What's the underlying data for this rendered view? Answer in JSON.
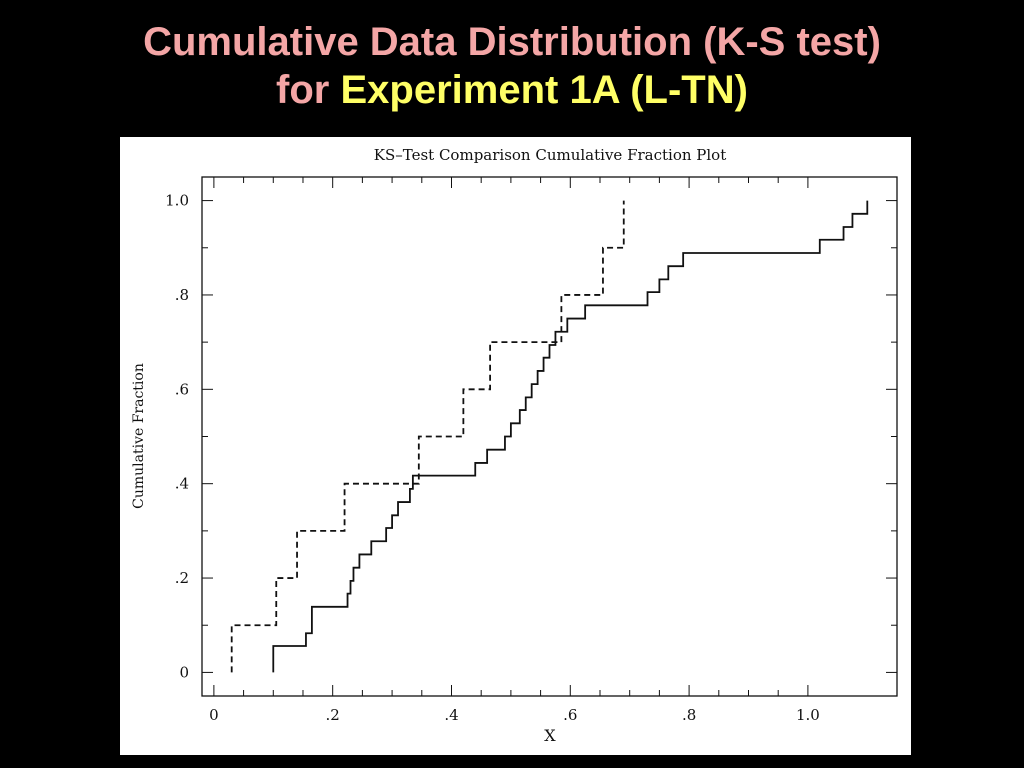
{
  "slide": {
    "title_line1": "Cumulative Data Distribution (K-S test)",
    "title_line2_prefix": "for",
    "title_line2_highlight": "Experiment 1A (L-TN)",
    "colors": {
      "title": "#f4a6a6",
      "highlight": "#ffff66",
      "background": "#000000"
    }
  },
  "chart_data": {
    "type": "line",
    "title": "KS–Test Comparison Cumulative Fraction Plot",
    "xlabel": "X",
    "ylabel": "Cumulative Fraction",
    "xlim": [
      -0.02,
      1.15
    ],
    "ylim": [
      -0.05,
      1.05
    ],
    "xticks": [
      0,
      0.2,
      0.4,
      0.6,
      0.8,
      1.0
    ],
    "xtick_labels": [
      "0",
      ".2",
      ".4",
      ".6",
      ".8",
      "1.0"
    ],
    "yticks": [
      0,
      0.2,
      0.4,
      0.6,
      0.8,
      1.0
    ],
    "ytick_labels": [
      "0",
      ".2",
      ".4",
      ".6",
      ".8",
      "1.0"
    ],
    "grid": false,
    "series": [
      {
        "style": "solid",
        "color": "#111111",
        "x": [
          0.1,
          0.1,
          0.155,
          0.165,
          0.225,
          0.23,
          0.235,
          0.245,
          0.265,
          0.29,
          0.3,
          0.31,
          0.33,
          0.335,
          0.345,
          0.44,
          0.46,
          0.49,
          0.5,
          0.515,
          0.525,
          0.535,
          0.545,
          0.555,
          0.565,
          0.575,
          0.595,
          0.625,
          0.73,
          0.75,
          0.765,
          0.79,
          1.02,
          1.06,
          1.075,
          1.1
        ],
        "y": [
          0.0,
          0.056,
          0.083,
          0.139,
          0.167,
          0.194,
          0.222,
          0.25,
          0.278,
          0.306,
          0.333,
          0.361,
          0.389,
          0.417,
          0.417,
          0.444,
          0.472,
          0.5,
          0.528,
          0.556,
          0.583,
          0.611,
          0.639,
          0.667,
          0.694,
          0.722,
          0.75,
          0.778,
          0.806,
          0.833,
          0.861,
          0.889,
          0.917,
          0.944,
          0.972,
          1.0
        ]
      },
      {
        "style": "dashed",
        "color": "#111111",
        "x": [
          0.03,
          0.03,
          0.105,
          0.14,
          0.22,
          0.345,
          0.42,
          0.465,
          0.585,
          0.655,
          0.69
        ],
        "y": [
          0.0,
          0.1,
          0.2,
          0.3,
          0.4,
          0.5,
          0.6,
          0.7,
          0.8,
          0.9,
          1.0
        ]
      }
    ]
  }
}
